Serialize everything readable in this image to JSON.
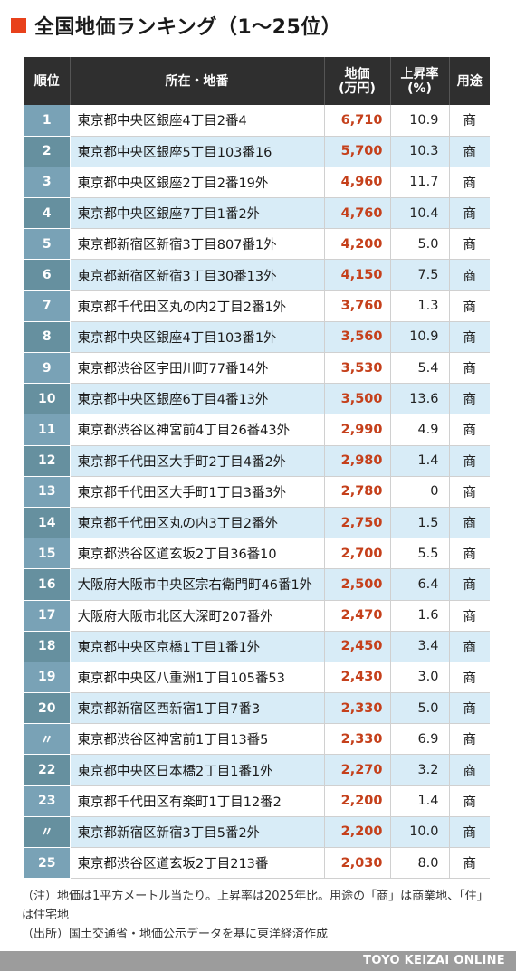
{
  "title": "全国地価ランキング（1～25位）",
  "accent_color": "#e8411b",
  "header": {
    "rank": "順位",
    "address": "所在・地番",
    "price_line1": "地価",
    "price_line2": "(万円)",
    "rate_line1": "上昇率",
    "rate_line2": "(%)",
    "use": "用途"
  },
  "chart_data": {
    "type": "table",
    "title": "全国地価ランキング（1～25位）",
    "columns": [
      "順位",
      "所在・地番",
      "地価(万円)",
      "上昇率(%)",
      "用途"
    ],
    "rows": [
      {
        "rank": "1",
        "address": "東京都中央区銀座4丁目2番4",
        "price": "6,710",
        "rate": "10.9",
        "use": "商"
      },
      {
        "rank": "2",
        "address": "東京都中央区銀座5丁目103番16",
        "price": "5,700",
        "rate": "10.3",
        "use": "商"
      },
      {
        "rank": "3",
        "address": "東京都中央区銀座2丁目2番19外",
        "price": "4,960",
        "rate": "11.7",
        "use": "商"
      },
      {
        "rank": "4",
        "address": "東京都中央区銀座7丁目1番2外",
        "price": "4,760",
        "rate": "10.4",
        "use": "商"
      },
      {
        "rank": "5",
        "address": "東京都新宿区新宿3丁目807番1外",
        "price": "4,200",
        "rate": "5.0",
        "use": "商"
      },
      {
        "rank": "6",
        "address": "東京都新宿区新宿3丁目30番13外",
        "price": "4,150",
        "rate": "7.5",
        "use": "商"
      },
      {
        "rank": "7",
        "address": "東京都千代田区丸の内2丁目2番1外",
        "price": "3,760",
        "rate": "1.3",
        "use": "商"
      },
      {
        "rank": "8",
        "address": "東京都中央区銀座4丁目103番1外",
        "price": "3,560",
        "rate": "10.9",
        "use": "商"
      },
      {
        "rank": "9",
        "address": "東京都渋谷区宇田川町77番14外",
        "price": "3,530",
        "rate": "5.4",
        "use": "商"
      },
      {
        "rank": "10",
        "address": "東京都中央区銀座6丁目4番13外",
        "price": "3,500",
        "rate": "13.6",
        "use": "商"
      },
      {
        "rank": "11",
        "address": "東京都渋谷区神宮前4丁目26番43外",
        "price": "2,990",
        "rate": "4.9",
        "use": "商"
      },
      {
        "rank": "12",
        "address": "東京都千代田区大手町2丁目4番2外",
        "price": "2,980",
        "rate": "1.4",
        "use": "商"
      },
      {
        "rank": "13",
        "address": "東京都千代田区大手町1丁目3番3外",
        "price": "2,780",
        "rate": "0",
        "use": "商"
      },
      {
        "rank": "14",
        "address": "東京都千代田区丸の内3丁目2番外",
        "price": "2,750",
        "rate": "1.5",
        "use": "商"
      },
      {
        "rank": "15",
        "address": "東京都渋谷区道玄坂2丁目36番10",
        "price": "2,700",
        "rate": "5.5",
        "use": "商"
      },
      {
        "rank": "16",
        "address": "大阪府大阪市中央区宗右衛門町46番1外",
        "price": "2,500",
        "rate": "6.4",
        "use": "商"
      },
      {
        "rank": "17",
        "address": "大阪府大阪市北区大深町207番外",
        "price": "2,470",
        "rate": "1.6",
        "use": "商"
      },
      {
        "rank": "18",
        "address": "東京都中央区京橋1丁目1番1外",
        "price": "2,450",
        "rate": "3.4",
        "use": "商"
      },
      {
        "rank": "19",
        "address": "東京都中央区八重洲1丁目105番53",
        "price": "2,430",
        "rate": "3.0",
        "use": "商"
      },
      {
        "rank": "20",
        "address": "東京都新宿区西新宿1丁目7番3",
        "price": "2,330",
        "rate": "5.0",
        "use": "商"
      },
      {
        "rank": "〃",
        "address": "東京都渋谷区神宮前1丁目13番5",
        "price": "2,330",
        "rate": "6.9",
        "use": "商"
      },
      {
        "rank": "22",
        "address": "東京都中央区日本橋2丁目1番1外",
        "price": "2,270",
        "rate": "3.2",
        "use": "商"
      },
      {
        "rank": "23",
        "address": "東京都千代田区有楽町1丁目12番2",
        "price": "2,200",
        "rate": "1.4",
        "use": "商"
      },
      {
        "rank": "〃",
        "address": "東京都新宿区新宿3丁目5番2外",
        "price": "2,200",
        "rate": "10.0",
        "use": "商"
      },
      {
        "rank": "25",
        "address": "東京都渋谷区道玄坂2丁目213番",
        "price": "2,030",
        "rate": "8.0",
        "use": "商"
      }
    ]
  },
  "notes": {
    "note": "（注）地価は1平方メートル当たり。上昇率は2025年比。用途の「商」は商業地、「住」は住宅地",
    "source": "（出所）国土交通省・地価公示データを基に東洋経済作成"
  },
  "footer": {
    "brand": "TOYO KEIZAI ONLINE"
  }
}
